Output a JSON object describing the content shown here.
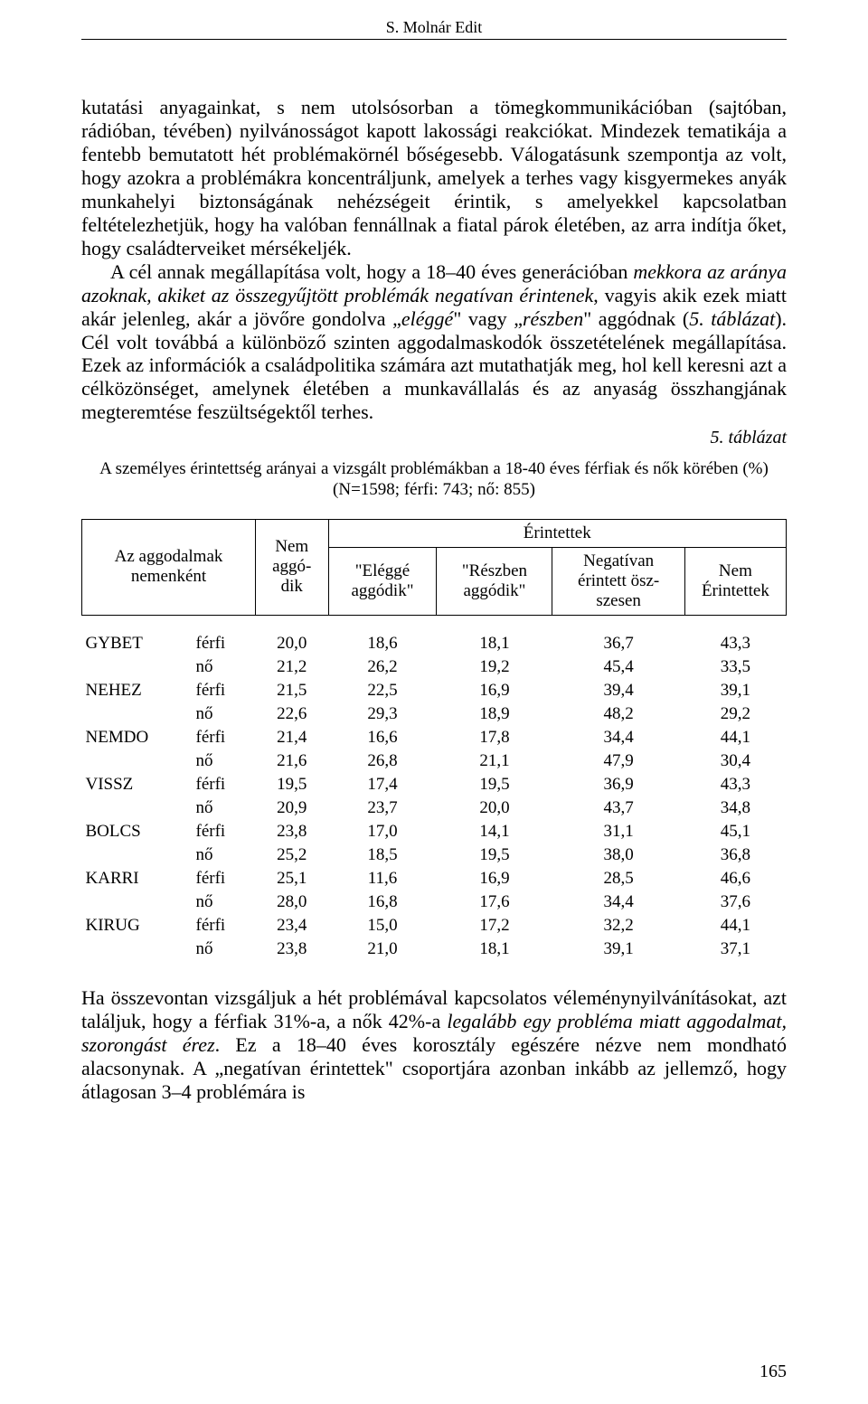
{
  "header": {
    "running_head": "S. Molnár Edit"
  },
  "paragraphs": {
    "p1": "kutatási anyagainkat, s nem utolsósorban a tömegkommunikációban (sajtóban, rádióban, tévében) nyilvánosságot kapott lakossági reakciókat. Mindezek tematikája a fentebb bemutatott hét problémakörnél bőségesebb. Válogatásunk szempontja az volt, hogy azokra a problémákra koncentráljunk, amelyek a terhes vagy kisgyermekes anyák munkahelyi biztonságának nehézségeit érintik, s amelyekkel kapcsolatban feltételezhetjük, hogy ha valóban fennállnak a fiatal párok életében, az arra indítja őket, hogy családterveiket mérsékeljék.",
    "p2_a": "A cél annak megállapítása volt, hogy a 18–40 éves generációban ",
    "p2_b": "mekkora az aránya azoknak, akiket az összegyűjtött problémák negatívan érintenek",
    "p2_c": ", vagyis akik ezek miatt akár jelenleg, akár a jövőre gondolva „",
    "p2_d": "eléggé",
    "p2_e": "\" vagy „",
    "p2_f": "részben",
    "p2_g": "\" aggódnak (",
    "p2_h": "5. táblázat",
    "p2_i": "). Cél volt továbbá a különböző szinten aggodalmaskodók összetételének megállapítása. Ezek az információk a családpolitika számára azt mutathatják meg, hol kell keresni azt a célközönséget, amelynek életében a munkavállalás és az anyaság összhangjának megteremtése feszültségektől terhes.",
    "p3_a": "Ha összevontan vizsgáljuk a hét problémával kapcsolatos vélemény­nyilvánításokat, azt találjuk, hogy a férfiak 31%-a, a nők 42%-a ",
    "p3_b": "legalább egy probléma miatt aggodalmat, szorongást érez",
    "p3_c": ". Ez a 18–40 éves korosztály egészére nézve nem mondható alacsonynak. A „negatívan érintettek\" csoportjára azonban inkább az jellemző, hogy átlagosan 3–4 problémára is"
  },
  "table": {
    "label": "5. táblázat",
    "caption_line1": "A személyes érintettség arányai a vizsgált problémákban a 18-40 éves férfiak és nők körében (%)",
    "caption_line2": "(N=1598; férfi: 743; nő: 855)",
    "head": {
      "rowhead": "Az aggodalmak nemenként",
      "col1": "Nem aggó-\ndik",
      "erint": "Érintettek",
      "col2": "\"Eléggé aggódik\"",
      "col3": "\"Részben aggódik\"",
      "col4": "Negatívan érintett ösz-\nszesen",
      "col5": "Nem Érintettek"
    },
    "rows": [
      {
        "code": "GYBET",
        "g": "férfi",
        "c1": "20,0",
        "c2": "18,6",
        "c3": "18,1",
        "c4": "36,7",
        "c5": "43,3"
      },
      {
        "code": "",
        "g": "nő",
        "c1": "21,2",
        "c2": "26,2",
        "c3": "19,2",
        "c4": "45,4",
        "c5": "33,5"
      },
      {
        "code": "NEHEZ",
        "g": "férfi",
        "c1": "21,5",
        "c2": "22,5",
        "c3": "16,9",
        "c4": "39,4",
        "c5": "39,1"
      },
      {
        "code": "",
        "g": "nő",
        "c1": "22,6",
        "c2": "29,3",
        "c3": "18,9",
        "c4": "48,2",
        "c5": "29,2"
      },
      {
        "code": "NEMDO",
        "g": "férfi",
        "c1": "21,4",
        "c2": "16,6",
        "c3": "17,8",
        "c4": "34,4",
        "c5": "44,1"
      },
      {
        "code": "",
        "g": "nő",
        "c1": "21,6",
        "c2": "26,8",
        "c3": "21,1",
        "c4": "47,9",
        "c5": "30,4"
      },
      {
        "code": "VISSZ",
        "g": "férfi",
        "c1": "19,5",
        "c2": "17,4",
        "c3": "19,5",
        "c4": "36,9",
        "c5": "43,3"
      },
      {
        "code": "",
        "g": "nő",
        "c1": "20,9",
        "c2": "23,7",
        "c3": "20,0",
        "c4": "43,7",
        "c5": "34,8"
      },
      {
        "code": "BOLCS",
        "g": "férfi",
        "c1": "23,8",
        "c2": "17,0",
        "c3": "14,1",
        "c4": "31,1",
        "c5": "45,1"
      },
      {
        "code": "",
        "g": "nő",
        "c1": "25,2",
        "c2": "18,5",
        "c3": "19,5",
        "c4": "38,0",
        "c5": "36,8"
      },
      {
        "code": "KARRI",
        "g": "férfi",
        "c1": "25,1",
        "c2": "11,6",
        "c3": "16,9",
        "c4": "28,5",
        "c5": "46,6"
      },
      {
        "code": "",
        "g": "nő",
        "c1": "28,0",
        "c2": "16,8",
        "c3": "17,6",
        "c4": "34,4",
        "c5": "37,6"
      },
      {
        "code": "KIRUG",
        "g": "férfi",
        "c1": "23,4",
        "c2": "15,0",
        "c3": "17,2",
        "c4": "32,2",
        "c5": "44,1"
      },
      {
        "code": "",
        "g": "nő",
        "c1": "23,8",
        "c2": "21,0",
        "c3": "18,1",
        "c4": "39,1",
        "c5": "37,1"
      }
    ]
  },
  "page_number": "165"
}
